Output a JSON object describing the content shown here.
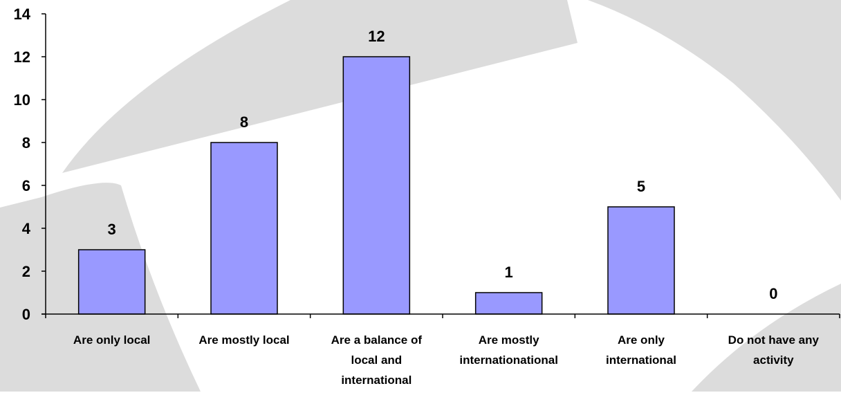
{
  "colors": {
    "background": "#ffffff",
    "watermark": "#dcdcdc",
    "bar_fill": "#9999ff",
    "bar_stroke": "#000000",
    "axis": "#000000",
    "text": "#000000"
  },
  "chart_data": {
    "type": "bar",
    "title": "",
    "xlabel": "",
    "ylabel": "",
    "ylim": [
      0,
      14
    ],
    "yticks": [
      0,
      2,
      4,
      6,
      8,
      10,
      12,
      14
    ],
    "grid": false,
    "legend": "none",
    "categories": [
      [
        "Are only local"
      ],
      [
        "Are mostly local"
      ],
      [
        "Are a balance of",
        "local and",
        "international"
      ],
      [
        "Are mostly",
        "internationational"
      ],
      [
        "Are only",
        "international"
      ],
      [
        "Do not have any",
        "activity"
      ]
    ],
    "values": [
      3,
      8,
      12,
      1,
      5,
      0
    ],
    "data_labels": [
      "3",
      "8",
      "12",
      "1",
      "5",
      "0"
    ]
  }
}
